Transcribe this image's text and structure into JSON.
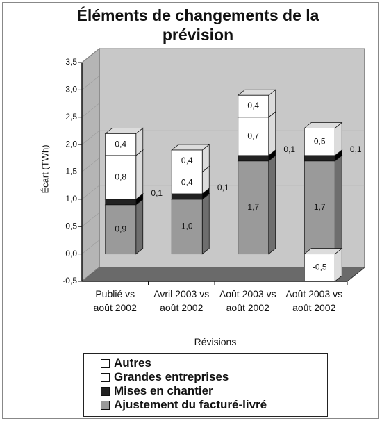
{
  "chart_data": {
    "type": "bar3d_stacked",
    "title": "Éléments de changements de la prévision",
    "y_label": "Écart (TWh)",
    "x_label": "Révisions",
    "categories": [
      "Publié vs août 2002",
      "Avril 2003 vs août 2002",
      "Août 2003 vs août 2002",
      "Août 2003 vs août 2002"
    ],
    "series": [
      {
        "name": "Ajustement du facturé-livré",
        "color": "#9a9a9a",
        "values": [
          0.9,
          1.0,
          1.7,
          1.7
        ],
        "value_labels": [
          "0,9",
          "1,0",
          "1,7",
          "1,7"
        ]
      },
      {
        "name": "Mises en chantier",
        "color": "#222222",
        "values": [
          0.1,
          0.1,
          0.1,
          0.1
        ],
        "value_labels": [
          "0,1",
          "0,1",
          "0,1",
          "0,1"
        ]
      },
      {
        "name": "Grandes entreprises",
        "color": "#ffffff",
        "values": [
          0.8,
          0.4,
          0.7,
          -0.5
        ],
        "value_labels": [
          "0,8",
          "0,4",
          "0,7",
          "-0,5"
        ]
      },
      {
        "name": "Autres",
        "color": "#ffffff",
        "values": [
          0.4,
          0.4,
          0.4,
          0.5
        ],
        "value_labels": [
          "0,4",
          "0,4",
          "0,4",
          "0,5"
        ]
      }
    ],
    "ylim": [
      -0.5,
      3.5
    ],
    "yticks": [
      {
        "value": -0.5,
        "label": "-0,5"
      },
      {
        "value": 0,
        "label": "0,0"
      },
      {
        "value": 0.5,
        "label": "0,5"
      },
      {
        "value": 1,
        "label": "1,0"
      },
      {
        "value": 1.5,
        "label": "1,5"
      },
      {
        "value": 2,
        "label": "2,0"
      },
      {
        "value": 2.5,
        "label": "2,5"
      },
      {
        "value": 3,
        "label": "3,0"
      },
      {
        "value": 3.5,
        "label": "3,5"
      }
    ],
    "legend": "bottom"
  }
}
